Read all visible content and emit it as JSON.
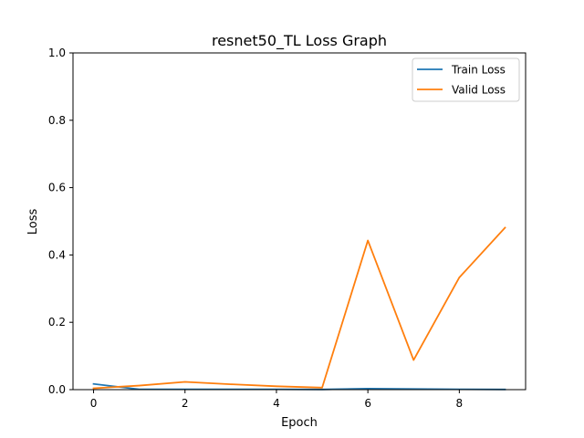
{
  "chart_data": {
    "type": "line",
    "title": "resnet50_TL Loss Graph",
    "xlabel": "Epoch",
    "ylabel": "Loss",
    "xlim": [
      -0.45,
      9.45
    ],
    "ylim": [
      0,
      1.0
    ],
    "xticks": [
      0,
      2,
      4,
      6,
      8
    ],
    "xtick_labels": [
      "0",
      "2",
      "4",
      "6",
      "8"
    ],
    "yticks": [
      0,
      0.2,
      0.4,
      0.6,
      0.8,
      1.0
    ],
    "ytick_labels": [
      "0.0",
      "0.2",
      "0.4",
      "0.6",
      "0.8",
      "1.0"
    ],
    "grid": false,
    "legend_position": "top-right",
    "x": [
      0,
      1,
      2,
      3,
      4,
      5,
      6,
      7,
      8,
      9
    ],
    "series": [
      {
        "name": "Train Loss",
        "color": "#1f77b4",
        "values": [
          0.017,
          0.001,
          0.001,
          0.001,
          0.001,
          0.0005,
          0.003,
          0.002,
          0.001,
          0.0005
        ]
      },
      {
        "name": "Valid Loss",
        "color": "#ff7f0e",
        "values": [
          0.004,
          0.012,
          0.023,
          0.016,
          0.01,
          0.006,
          0.443,
          0.088,
          0.333,
          0.481
        ]
      }
    ]
  }
}
